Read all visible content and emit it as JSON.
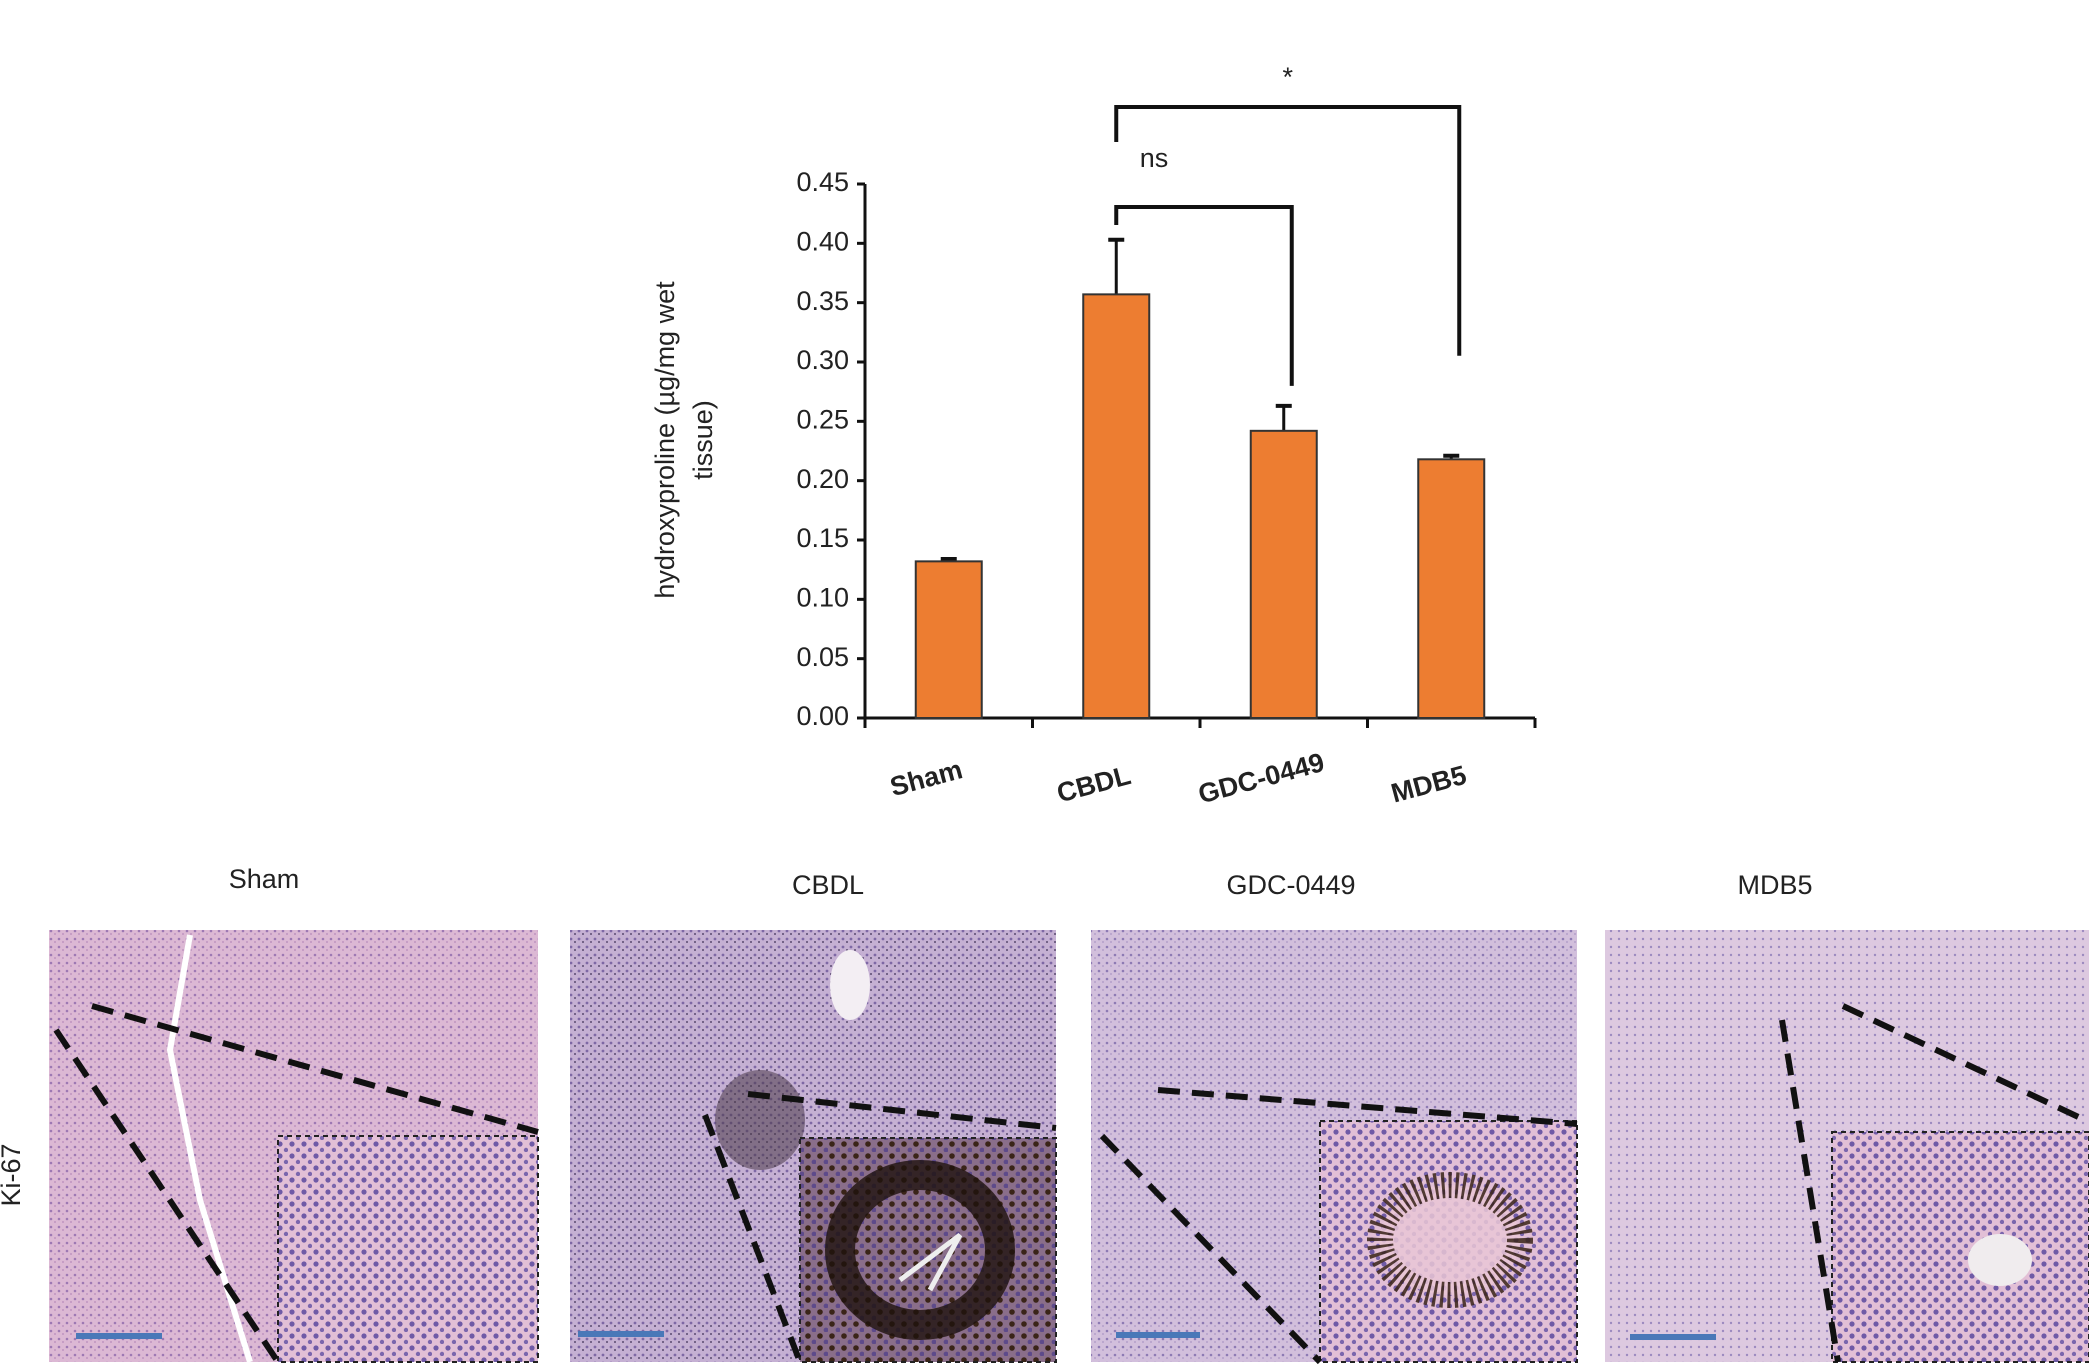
{
  "chart_data": {
    "type": "bar",
    "y_label": [
      "hydroxyproline  (µg/mg wet",
      "tissue)"
    ],
    "categories": [
      "Sham",
      "CBDL",
      "GDC-0449",
      "MDB5"
    ],
    "values": [
      0.132,
      0.357,
      0.242,
      0.218
    ],
    "errors": [
      0.002,
      0.046,
      0.021,
      0.003
    ],
    "color": "#ed7d31",
    "ylim": [
      0,
      0.45
    ],
    "yticks": [
      {
        "value": 0,
        "label": "0.00"
      },
      0.05,
      {
        "value": 0.1,
        "label": "0.10"
      },
      0.15,
      {
        "value": 0.2,
        "label": "0.20"
      },
      0.25,
      {
        "value": 0.3,
        "label": "0.30"
      },
      0.35,
      {
        "value": 0.4,
        "label": "0.40"
      },
      0.45
    ],
    "annotations": [
      {
        "text": "ns",
        "from": 1,
        "to": 2
      },
      {
        "text": "*",
        "from": 1,
        "to": 3
      }
    ]
  },
  "panels": {
    "row_label": "Ki-67",
    "titles": [
      "Sham",
      "CBDL",
      "GDC-0449",
      "MDB5"
    ]
  }
}
